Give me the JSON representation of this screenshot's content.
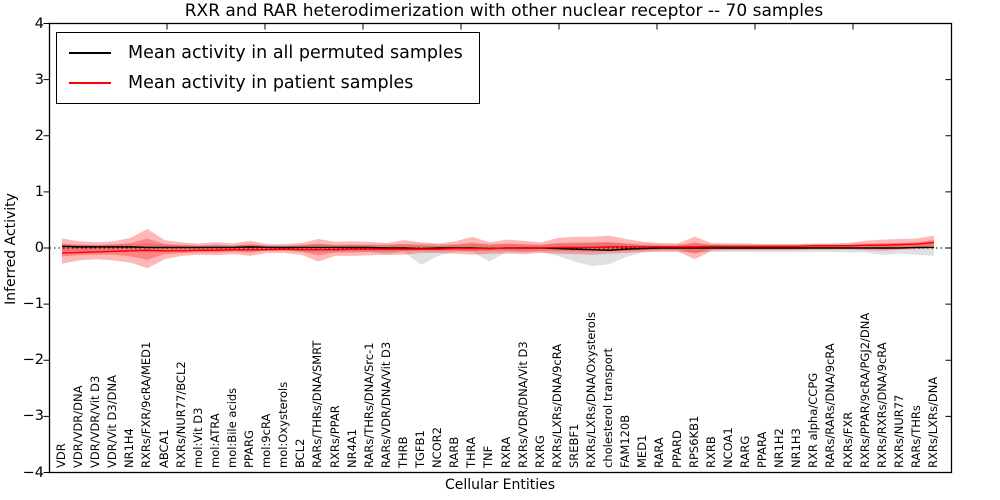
{
  "figure": {
    "title": "RXR and RAR heterodimerization with other nuclear receptor -- 70 samples",
    "xlabel": "Cellular Entities",
    "ylabel": "Inferred Activity"
  },
  "legend": {
    "items": [
      {
        "label": "Mean activity in all permuted samples",
        "color": "#000000"
      },
      {
        "label": "Mean activity in patient samples",
        "color": "#ff0000"
      }
    ]
  },
  "chart_data": {
    "type": "line",
    "title": "RXR and RAR heterodimerization with other nuclear receptor -- 70 samples",
    "xlabel": "Cellular Entities",
    "ylabel": "Inferred Activity",
    "ylim": [
      -4,
      4
    ],
    "yticks": [
      4,
      3,
      2,
      1,
      0,
      -1,
      -2,
      -3,
      -4
    ],
    "ytick_labels": [
      "4",
      "3",
      "2",
      "1",
      "0",
      "−1",
      "−2",
      "−3",
      "−4"
    ],
    "grid": false,
    "legend_position": "upper left",
    "zero_line": {
      "value": 0,
      "style": "dotted",
      "color": "#000000"
    },
    "colors": {
      "permuted_line": "#000000",
      "patient_line": "#ff0000",
      "permuted_band": "rgba(0,0,0,0.12)",
      "patient_band": "rgba(255,0,0,0.28)"
    },
    "categories": [
      "VDR",
      "VDR/VDR/DNA",
      "VDR/VDR/Vit D3",
      "VDR/Vit D3/DNA",
      "NR1H4",
      "RXRs/FXR/9cRA/MED1",
      "ABCA1",
      "RXRs/NUR77/BCL2",
      "mol:Vit D3",
      "mol:ATRA",
      "mol:Bile acids",
      "PPARG",
      "mol:9cRA",
      "mol:Oxysterols",
      "BCL2",
      "RARs/THRs/DNA/SMRT",
      "RXRs/PPAR",
      "NR4A1",
      "RARs/THRs/DNA/Src-1",
      "RARs/VDR/DNA/Vit D3",
      "THRB",
      "TGFB1",
      "NCOR2",
      "RARB",
      "THRA",
      "TNF",
      "RXRA",
      "RXRs/VDR/DNA/Vit D3",
      "RXRG",
      "RXRs/LXRs/DNA/9cRA",
      "SREBF1",
      "RXRs/LXRs/DNA/Oxysterols",
      "cholesterol transport",
      "FAM120B",
      "MED1",
      "RARA",
      "PPARD",
      "RPS6KB1",
      "RXRB",
      "NCOA1",
      "RARG",
      "PPARA",
      "NR1H2",
      "NR1H3",
      "RXR alpha/CCPG",
      "RARs/RARs/DNA/9cRA",
      "RXRs/FXR",
      "RXRs/PPAR/9cRA/PGJ2/DNA",
      "RXRs/RXRs/DNA/9cRA",
      "RXRs/NUR77",
      "RARs/THRs",
      "RXRs/LXRs/DNA"
    ],
    "series": [
      {
        "name": "Mean activity in all permuted samples",
        "kind": "line",
        "color": "#000000",
        "values": [
          0.03,
          0.02,
          0.02,
          0.02,
          0.02,
          0.01,
          0.01,
          0.01,
          0.01,
          0.01,
          0.01,
          0.02,
          0.01,
          0.01,
          0.01,
          0.01,
          0.01,
          0.01,
          0.01,
          0.0,
          0.0,
          -0.01,
          0.0,
          0.0,
          0.0,
          -0.01,
          0.0,
          0.0,
          0.0,
          -0.01,
          -0.02,
          -0.03,
          -0.04,
          -0.02,
          -0.01,
          0.0,
          0.0,
          0.0,
          0.0,
          0.0,
          0.0,
          0.0,
          0.0,
          0.0,
          0.0,
          0.0,
          0.0,
          0.0,
          0.0,
          0.0,
          0.01,
          0.01
        ]
      },
      {
        "name": "Mean activity in patient samples",
        "kind": "line",
        "color": "#ff0000",
        "values": [
          -0.09,
          -0.08,
          -0.07,
          -0.06,
          -0.05,
          -0.04,
          -0.05,
          -0.05,
          -0.04,
          -0.04,
          -0.03,
          -0.03,
          -0.03,
          -0.02,
          -0.03,
          -0.03,
          -0.03,
          -0.02,
          -0.02,
          -0.02,
          -0.02,
          -0.02,
          -0.02,
          -0.01,
          -0.01,
          -0.01,
          0.0,
          0.0,
          0.0,
          0.01,
          0.01,
          0.01,
          0.02,
          0.02,
          0.02,
          0.02,
          0.02,
          0.02,
          0.03,
          0.03,
          0.03,
          0.03,
          0.03,
          0.03,
          0.04,
          0.04,
          0.04,
          0.05,
          0.05,
          0.06,
          0.07,
          0.1
        ]
      },
      {
        "name": "Permuted samples interval",
        "kind": "band",
        "color": "rgba(0,0,0,0.12)",
        "upper": [
          0.06,
          0.06,
          0.06,
          0.07,
          0.07,
          0.08,
          0.07,
          0.06,
          0.05,
          0.06,
          0.05,
          0.06,
          0.05,
          0.05,
          0.06,
          0.07,
          0.06,
          0.06,
          0.07,
          0.07,
          0.07,
          0.08,
          0.07,
          0.07,
          0.07,
          0.08,
          0.07,
          0.08,
          0.07,
          0.08,
          0.08,
          0.09,
          0.09,
          0.08,
          0.08,
          0.07,
          0.07,
          0.08,
          0.07,
          0.07,
          0.07,
          0.07,
          0.07,
          0.07,
          0.07,
          0.07,
          0.08,
          0.08,
          0.08,
          0.08,
          0.08,
          0.08
        ],
        "lower": [
          -0.06,
          -0.06,
          -0.06,
          -0.07,
          -0.07,
          -0.08,
          -0.07,
          -0.06,
          -0.05,
          -0.06,
          -0.05,
          -0.06,
          -0.05,
          -0.05,
          -0.06,
          -0.07,
          -0.06,
          -0.06,
          -0.07,
          -0.12,
          -0.07,
          -0.3,
          -0.14,
          -0.07,
          -0.07,
          -0.24,
          -0.07,
          -0.08,
          -0.07,
          -0.14,
          -0.24,
          -0.32,
          -0.29,
          -0.16,
          -0.08,
          -0.07,
          -0.07,
          -0.08,
          -0.07,
          -0.07,
          -0.07,
          -0.07,
          -0.07,
          -0.07,
          -0.07,
          -0.07,
          -0.08,
          -0.08,
          -0.12,
          -0.1,
          -0.12,
          -0.14
        ]
      },
      {
        "name": "Patient samples interval (outer)",
        "kind": "band",
        "color": "rgba(255,0,0,0.28)",
        "upper": [
          0.17,
          0.12,
          0.1,
          0.12,
          0.18,
          0.34,
          0.14,
          0.1,
          0.08,
          0.1,
          0.08,
          0.13,
          0.07,
          0.07,
          0.09,
          0.16,
          0.11,
          0.12,
          0.11,
          0.09,
          0.14,
          0.1,
          0.08,
          0.12,
          0.2,
          0.1,
          0.15,
          0.13,
          0.1,
          0.18,
          0.2,
          0.2,
          0.22,
          0.16,
          0.11,
          0.09,
          0.08,
          0.2,
          0.09,
          0.08,
          0.08,
          0.07,
          0.07,
          0.07,
          0.08,
          0.08,
          0.09,
          0.13,
          0.15,
          0.16,
          0.17,
          0.22
        ],
        "lower": [
          -0.28,
          -0.22,
          -0.2,
          -0.22,
          -0.26,
          -0.36,
          -0.2,
          -0.14,
          -0.12,
          -0.13,
          -0.11,
          -0.14,
          -0.09,
          -0.09,
          -0.12,
          -0.24,
          -0.14,
          -0.14,
          -0.13,
          -0.12,
          -0.12,
          -0.09,
          -0.09,
          -0.1,
          -0.12,
          -0.1,
          -0.1,
          -0.11,
          -0.09,
          -0.1,
          -0.11,
          -0.12,
          -0.1,
          -0.09,
          -0.07,
          -0.06,
          -0.06,
          -0.2,
          -0.05,
          -0.04,
          -0.04,
          -0.04,
          -0.04,
          -0.04,
          -0.03,
          -0.03,
          -0.03,
          -0.04,
          -0.05,
          -0.03,
          -0.02,
          0.0
        ]
      },
      {
        "name": "Patient samples interval (inner)",
        "kind": "band",
        "color": "rgba(255,0,0,0.28)",
        "upper": [
          0.08,
          0.06,
          0.05,
          0.06,
          0.09,
          0.17,
          0.07,
          0.05,
          0.04,
          0.05,
          0.04,
          0.07,
          0.04,
          0.03,
          0.05,
          0.08,
          0.05,
          0.06,
          0.05,
          0.05,
          0.07,
          0.05,
          0.04,
          0.06,
          0.1,
          0.05,
          0.08,
          0.06,
          0.05,
          0.09,
          0.1,
          0.1,
          0.11,
          0.08,
          0.05,
          0.04,
          0.04,
          0.1,
          0.05,
          0.04,
          0.04,
          0.04,
          0.04,
          0.04,
          0.04,
          0.04,
          0.05,
          0.07,
          0.08,
          0.09,
          0.1,
          0.14
        ],
        "lower": [
          -0.15,
          -0.13,
          -0.12,
          -0.12,
          -0.15,
          -0.21,
          -0.11,
          -0.09,
          -0.08,
          -0.08,
          -0.07,
          -0.08,
          -0.05,
          -0.05,
          -0.07,
          -0.13,
          -0.08,
          -0.08,
          -0.07,
          -0.07,
          -0.06,
          -0.05,
          -0.05,
          -0.05,
          -0.06,
          -0.05,
          -0.05,
          -0.06,
          -0.05,
          -0.05,
          -0.06,
          -0.06,
          -0.05,
          -0.05,
          -0.04,
          -0.03,
          -0.03,
          -0.1,
          -0.02,
          -0.02,
          -0.02,
          -0.02,
          -0.02,
          -0.02,
          -0.01,
          -0.01,
          -0.01,
          -0.01,
          -0.02,
          0.0,
          0.01,
          0.04
        ]
      }
    ]
  }
}
